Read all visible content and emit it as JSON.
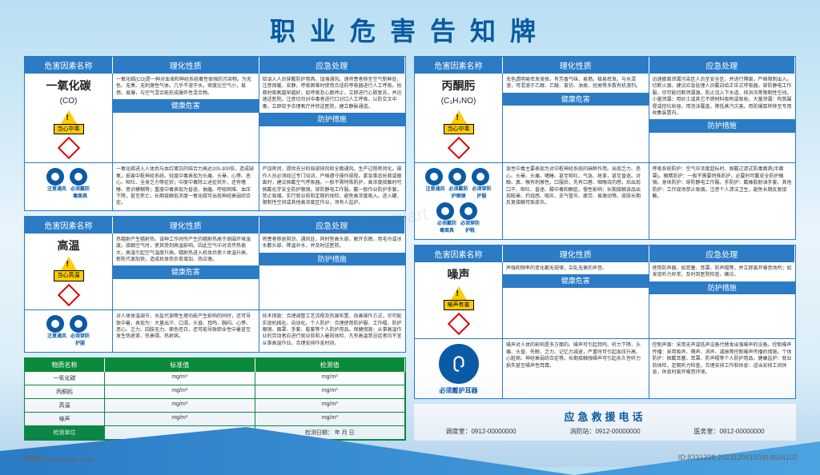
{
  "title": "职业危害告知牌",
  "colors": {
    "header_bg": "#2b7bc5",
    "green_bg": "#0a8a3a",
    "title_color": "#0a5aa0",
    "warn_yellow": "#ffcc00",
    "mandatory_blue": "#0b5aa5",
    "ghs_red": "#d00000"
  },
  "headers": {
    "hazard_name": "危害因素名称",
    "physical": "理化性质",
    "emergency": "应急处理",
    "health": "健康危害",
    "protection": "防护措施"
  },
  "cards": [
    {
      "name_cn": "一氧化碳",
      "name_en": "(CO)",
      "warn_label": "当心中毒",
      "icon_labels": [
        "注意通风",
        "必须戴防毒面具"
      ],
      "physical": "一氧化碳(CO)是一种对血液和神经系统毒性很强的污染物。为无色、无臭、无刺激性气体。几乎不溶于水。密度比空气小，易燃、易爆，与空气混合能形成爆炸性混合物。",
      "emergency": "给误入人员穿戴防护用具。加强通风。速将患者移至空气新鲜处，注意保暖、安静。呼吸困难时使用合适的呼吸器进行人工呼吸。抢救时吸氧越早越好。如呼吸及心跳停止，立即进行心肺复苏，并迅速送医院。注意切勿对中毒者进行口对口人工呼吸，以防交叉中毒。立即给予合理氧疗并转送医院，建立静脉通道。",
      "health": "一氧化碳进入人体后与血红蛋白的结合力高达200-300倍，造成缺氧，损害中枢神经系统。轻度中毒表现为头痛、头晕、心悸、恶心、呕吐、全身乏力等症状；中度中毒除上述症状外，还有嗜睡、意识模糊等；重度中毒表现为昏迷、抽搐、呼吸困难、血压下降，甚至死亡。长期接触低浓度一氧化碳可出现神经衰弱综合症。",
      "protection": "严加密闭，提供充分的局部排风和全面通风。生产过程密闭化。操作人员必须经过专门培训，严格遵守操作规程。紧急事态抢救或撤离时，建议佩戴空气呼吸器。一般不需特殊防护，高浓度接触时可佩戴化学安全防护眼镜。穿防静电工作服。戴一般作业防护手套。禁止吸烟。实行就业前和定期的体检，避免高浓度吸入。进入罐、限制性空间或其他高浓度区作业，须有人监护。"
    },
    {
      "name_cn": "丙酮肟",
      "name_en": "(C₃H₇NO)",
      "warn_label": "当心中毒",
      "icon_labels": [
        "注意通风",
        "必须戴防护眼镜",
        "必须穿防护服",
        "必须戴防毒面具",
        "必须穿防护靴"
      ],
      "physical": "无色透明易挥发液体。有芳香气味、易燃。极易挥发。与水混溶，可混溶于乙醇、乙醚、氯仿、油类、烃类等多数有机溶剂。",
      "emergency": "迅速撤离泄漏污染区人员至安全区，并进行隔离，严格限制出入。切断火源。建议应急处理人员戴自给正压式呼吸器，穿防静电工作服。尽可能切断泄漏源。防止流入下水道、排洪沟等限制性空间。小量泄漏：用砂土或其它不燃材料吸附或吸收。大量泄漏：构筑围堤或挖坑收容。用泡沫覆盖，降低蒸汽灾害。用防爆泵转移至专用收集装置内。",
      "health": "急性中毒主要表现为对中枢神经系统的麻醉作用。出现乏力、恶心、头晕、头痛、嗜睡、甚至呕吐、气急、痉挛，甚至昏迷。对眼、鼻、喉有刺激性。口服后，先有口唇、咽喉烧灼感，后出现口干、呕吐、昏迷、酸中毒和酮症。慢性影响：长期接触该品出现眩晕、灼烧感、咽炎、支气管炎、疲劳、易激动等。皮肤长期反复接触可致皮炎。",
      "protection": "呼吸系统防护：空气中浓度超标时，佩戴过滤式防毒面具(半面罩)。眼睛防护：一般不需要特殊防护，必要时可戴安全防护眼镜。身体防护：穿防静电工作服。手防护：戴橡胶耐油手套。其他防护：工作现场禁止吸烟。注意个人清洁卫生。避免长期反复接触。"
    },
    {
      "name_cn": "高温",
      "name_en": "",
      "warn_label": "当心高温",
      "icon_labels": [
        "注意通风",
        "必须穿防护服"
      ],
      "physical": "热辐射产生辐射热。该种工作时所产生的辐射热高于周围环境温度。接触空气时，使其受到高温影响。因此空气中对流传热很大，高温引起空气温度升高。辐射热进入机体后使人体温升高、新陈代谢加快，造成机体热负荷增加、热应激。",
      "emergency": "将患者移居阴凉、通风处，同时垫高头部，解开衣裤。用毛巾或冰水敷头部、降温补水，并及时送医院。",
      "health": "对人体体温调节、水盐代谢等生理功能产生影响的同时，还可导致中暑，表现为：大量出汗、口渴、头昏、耳鸣、胸闷、心悸、恶心、乏力、四肢无力、面色苍白，还可能导致职业性中暑甚至发生热痉挛、热衰竭、热射病。",
      "protection": "技术措施：合理调整工艺流程及热源布置，改善操作方式，尽可能实现机械化、自动化。个人防护：合理使用防护服、工作帽、防护眼镜、面罩、手套、鞋套等个人防护用品。保健措施：从事高温作业的劳动者应进行就业前和入暑前体检，凡有高温禁忌症者均不宜从事高温作业。合理安排作息时间。"
    },
    {
      "name_cn": "噪声",
      "name_en": "",
      "warn_label": "噪声有害",
      "icon_labels": [
        "必须戴护耳器"
      ],
      "big_icon_label": "必须戴护耳器",
      "physical": "声强和频率的变化都无规律，杂乱无章的声音。",
      "emergency": "使用防声器，如耳塞、耳罩、防声帽等，并立即离开噪音场所；如发现听力异常，及时到医院检查、确诊。",
      "health": "噪声对人体的影响是多方面的。噪声可引起耳鸣、听力下降、头痛、头昏、失眠、乏力、记忆力减退，严重时可引起血压升高、心脏病、神经衰弱综合症等。长期接触强噪声可引起永久性听力损失甚至噪声性耳聋。",
      "protection": "控制声源：采用无声或低声设备代替发出强噪声的设备。控制噪声传播：采用吸声、隔声、消声、减振等控制噪声传播的措施。个体防护：佩戴耳塞、耳罩、防声帽等个人防护用品。健康监护：就业前体检，定期听力检查。合理安排工作和休息：适当安排工间休息，休息时离开噪音环境。"
    }
  ],
  "green_table": {
    "headers": [
      "物质名称",
      "标准值",
      "检测值"
    ],
    "rows": [
      [
        "一氧化碳",
        "mg/m³",
        "mg/m³"
      ],
      [
        "丙酮肟",
        "mg/m³",
        "mg/m³"
      ],
      [
        "高温",
        "mg/m³",
        "mg/m³"
      ],
      [
        "噪声",
        "mg/m³",
        "mg/m³"
      ]
    ],
    "footer_left": "检测单位",
    "footer_right": "检测日期：    年    月    日"
  },
  "phone": {
    "title": "应急救援电话",
    "items": [
      {
        "label": "调度室：",
        "num": "0912-00000000"
      },
      {
        "label": "消防站：",
        "num": "0912-00000000"
      },
      {
        "label": "医务室：",
        "num": "0912-00000000"
      }
    ]
  },
  "footer": {
    "left": "昵图网  www.nipic.com",
    "right": "ID:8331228  20231206150914634102"
  },
  "watermark": "nipic.com/art"
}
